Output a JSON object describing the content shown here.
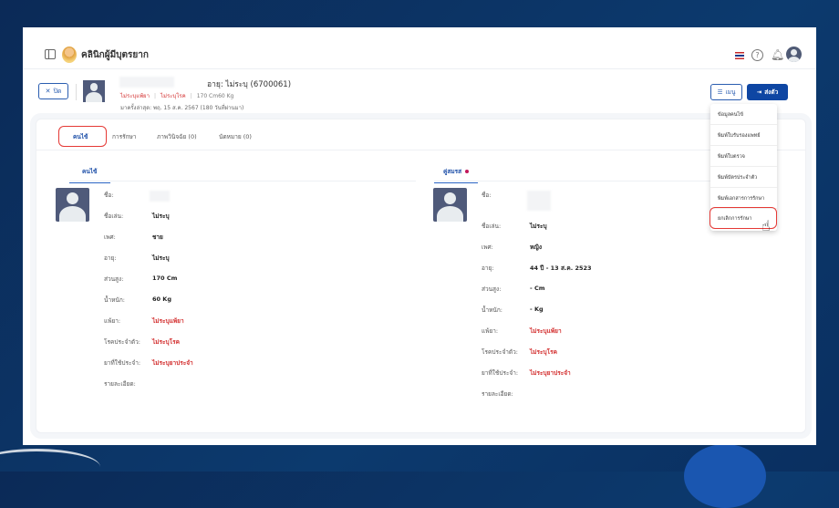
{
  "header": {
    "brand": "คลินิกผู้มีบุตรยาก",
    "icons": [
      "sidebar-toggle-icon",
      "thai-flag-icon",
      "help-icon",
      "bell-icon",
      "user-avatar-icon"
    ]
  },
  "patient": {
    "close_label": "ปิด",
    "age_line": "อายุ: ไม่ระบุ (6700061)",
    "allergy": "ไม่ระบุแพ้ยา",
    "disease": "ไม่ระบุโรค",
    "body": "170 Cm60 Kg",
    "last_visit": "มาครั้งล่าสุด: พฤ. 15 ส.ค. 2567 (180 วันที่ผ่านมา)"
  },
  "actions": {
    "menu_label": "เมนู",
    "send_label": "ส่งตัว"
  },
  "menu": {
    "items": [
      "ข้อมูลคนไข้",
      "พิมพ์ใบรับรองแพทย์",
      "พิมพ์ใบตรวจ",
      "พิมพ์บัตรประจำตัว",
      "พิมพ์เอกสารการรักษา",
      "ยกเลิกการรักษา"
    ],
    "highlighted": "ยกเลิกการรักษา"
  },
  "tabs": [
    {
      "label": "คนไข้",
      "active": true
    },
    {
      "label": "การรักษา"
    },
    {
      "label": "ภาพวินิจฉัย (0)"
    },
    {
      "label": "นัดหมาย (0)"
    }
  ],
  "patient_section": {
    "title": "คนไข้",
    "rows": [
      {
        "label": "ชื่อ:",
        "value": ""
      },
      {
        "label": "ชื่อเล่น:",
        "value": "ไม่ระบุ"
      },
      {
        "label": "เพศ:",
        "value": "ชาย"
      },
      {
        "label": "อายุ:",
        "value": "ไม่ระบุ"
      },
      {
        "label": "ส่วนสูง:",
        "value": "170 Cm"
      },
      {
        "label": "น้ำหนัก:",
        "value": "60 Kg"
      },
      {
        "label": "แพ้ยา:",
        "value": "ไม่ระบุแพ้ยา",
        "red": true
      },
      {
        "label": "โรคประจำตัว:",
        "value": "ไม่ระบุโรค",
        "red": true
      },
      {
        "label": "ยาที่ใช้ประจำ:",
        "value": "ไม่ระบุยาประจำ",
        "red": true
      },
      {
        "label": "รายละเอียด:",
        "value": ""
      }
    ]
  },
  "spouse_section": {
    "title": "คู่สมรส",
    "rows": [
      {
        "label": "ชื่อ:",
        "value": ""
      },
      {
        "label": "ชื่อเล่น:",
        "value": "ไม่ระบุ"
      },
      {
        "label": "เพศ:",
        "value": "หญิง"
      },
      {
        "label": "อายุ:",
        "value": "44 ปี - 13 ส.ค. 2523"
      },
      {
        "label": "ส่วนสูง:",
        "value": "- Cm"
      },
      {
        "label": "น้ำหนัก:",
        "value": "- Kg"
      },
      {
        "label": "แพ้ยา:",
        "value": "ไม่ระบุแพ้ยา",
        "red": true
      },
      {
        "label": "โรคประจำตัว:",
        "value": "ไม่ระบุโรค",
        "red": true
      },
      {
        "label": "ยาที่ใช้ประจำ:",
        "value": "ไม่ระบุยาประจำ",
        "red": true
      },
      {
        "label": "รายละเอียด:",
        "value": ""
      }
    ]
  },
  "colors": {
    "primary": "#0e46a3",
    "danger": "#d32f2f",
    "highlight": "#e53935",
    "background": "#0b2a57"
  }
}
